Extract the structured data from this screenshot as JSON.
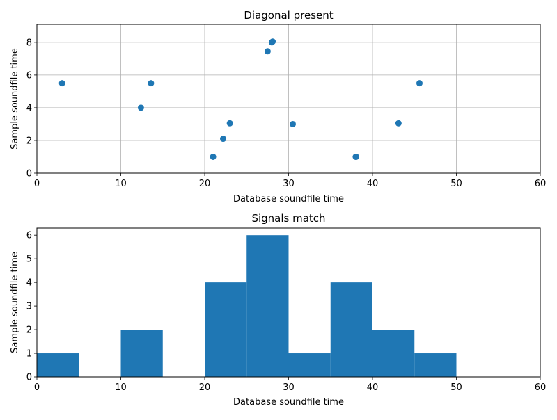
{
  "chart_data": [
    {
      "type": "scatter",
      "title": "Diagonal present",
      "xlabel": "Database soundfile time",
      "ylabel": "Sample soundfile time",
      "xlim": [
        0,
        60
      ],
      "ylim": [
        0,
        9.1
      ],
      "xticks": [
        "0",
        "10",
        "20",
        "30",
        "40",
        "50",
        "60"
      ],
      "yticks": [
        "0",
        "2",
        "4",
        "6",
        "8"
      ],
      "grid": true,
      "color": "#1f77b4",
      "points": [
        {
          "x": 3.0,
          "y": 5.5
        },
        {
          "x": 12.4,
          "y": 4.0
        },
        {
          "x": 13.6,
          "y": 5.5
        },
        {
          "x": 21.0,
          "y": 1.0
        },
        {
          "x": 22.2,
          "y": 2.1
        },
        {
          "x": 23.0,
          "y": 3.05
        },
        {
          "x": 27.5,
          "y": 7.45
        },
        {
          "x": 28.0,
          "y": 8.0
        },
        {
          "x": 28.1,
          "y": 8.05
        },
        {
          "x": 30.5,
          "y": 3.0
        },
        {
          "x": 38.0,
          "y": 1.0
        },
        {
          "x": 38.05,
          "y": 1.0
        },
        {
          "x": 43.1,
          "y": 3.05
        },
        {
          "x": 45.6,
          "y": 5.5
        }
      ]
    },
    {
      "type": "bar",
      "title": "Signals match",
      "xlabel": "Database soundfile time",
      "ylabel": "Sample soundfile time",
      "xlim": [
        0,
        60
      ],
      "ylim": [
        0,
        6.3
      ],
      "xticks": [
        "0",
        "10",
        "20",
        "30",
        "40",
        "50",
        "60"
      ],
      "yticks": [
        "0",
        "1",
        "2",
        "3",
        "4",
        "5",
        "6"
      ],
      "grid": false,
      "color": "#1f77b4",
      "bin_edges": [
        0,
        5,
        10,
        15,
        20,
        25,
        30,
        35,
        40,
        45,
        50,
        55,
        60
      ],
      "values": [
        1,
        0,
        2,
        0,
        4,
        6,
        1,
        4,
        2,
        1,
        0,
        0
      ]
    }
  ]
}
